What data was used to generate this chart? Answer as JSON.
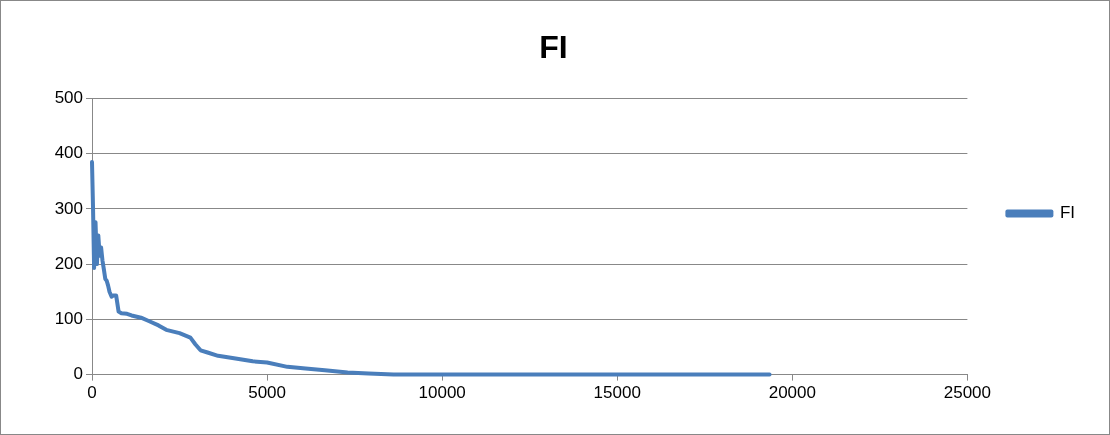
{
  "chart_data": {
    "type": "line",
    "title": "FI",
    "legend": "right",
    "grid": "y",
    "marker": "none",
    "xlim": [
      0,
      25000
    ],
    "xticks": [
      0,
      5000,
      10000,
      15000,
      20000,
      25000
    ],
    "ylim": [
      0,
      500
    ],
    "yticks": [
      0,
      100,
      200,
      300,
      400,
      500
    ],
    "series": [
      {
        "name": "FI",
        "color": "#4a7ebb",
        "x": [
          0,
          30,
          60,
          100,
          140,
          180,
          220,
          260,
          300,
          340,
          380,
          420,
          460,
          500,
          560,
          600,
          640,
          690,
          760,
          840,
          1000,
          1130,
          1400,
          1620,
          1900,
          2120,
          2500,
          2810,
          2950,
          3100,
          3300,
          3600,
          4100,
          4590,
          5000,
          5580,
          6100,
          6650,
          7300,
          7900,
          8610,
          9500,
          11000,
          13000,
          15000,
          17000,
          19350
        ],
        "values": [
          385,
          300,
          193,
          276,
          200,
          252,
          215,
          230,
          206,
          190,
          173,
          170,
          161,
          150,
          141,
          143,
          143,
          143,
          114,
          111,
          110,
          107,
          103,
          97,
          89,
          81,
          75,
          67,
          55,
          44,
          40,
          34,
          29,
          24,
          22,
          14,
          11,
          8,
          4,
          2,
          0,
          0,
          0,
          0,
          0,
          0,
          0
        ]
      }
    ]
  }
}
